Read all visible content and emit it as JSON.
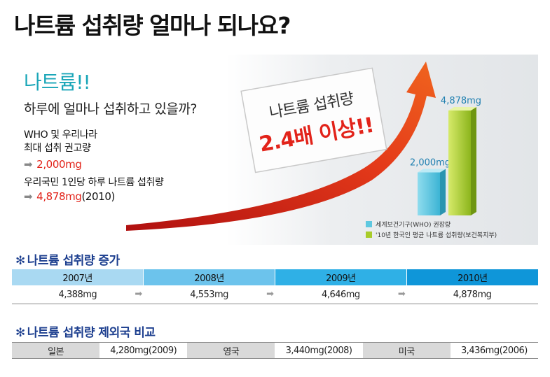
{
  "title": "나트륨 섭취량 얼마나 되나요?",
  "hero": {
    "heading": "나트륨!!",
    "subheading": "하루에 얼마나 섭취하고 있을까?",
    "who_line1": "WHO 및 우리나라",
    "who_line2": "최대 섭취 권고량",
    "who_value": "2,000mg",
    "korean_line": "우리국민 1인당 하루 나트륨 섭취량",
    "korean_value": "4,878mg",
    "korean_year": "(2010)",
    "arrow_glyph": "➡",
    "sign_line1": "나트륨 섭취량",
    "sign_line2": "2.4배 이상!!",
    "legend_who": "세계보건기구(WHO) 권장량",
    "legend_korea": "'10년 한국인 평균 나트륨 섭취량(보건복지부)"
  },
  "chart_data": {
    "type": "bar",
    "categories": [
      "세계보건기구(WHO) 권장량",
      "'10년 한국인 평균 나트륨 섭취량(보건복지부)"
    ],
    "values": [
      2000,
      4878
    ],
    "value_labels": [
      "2,000mg",
      "4,878mg"
    ],
    "colors": [
      "#5ec8e0",
      "#a8cc2a"
    ]
  },
  "increase": {
    "title": "나트륨 섭취량 증가",
    "asterisk": "✻",
    "arrow": "➡",
    "years": [
      "2007년",
      "2008년",
      "2009년",
      "2010년"
    ],
    "values": [
      "4,388mg",
      "4,553mg",
      "4,646mg",
      "4,878mg"
    ],
    "header_colors": [
      "#a9d9f2",
      "#6cc3ec",
      "#2fb0e6",
      "#0f96d9"
    ]
  },
  "comparison": {
    "title": "나트륨 섭취량 제외국 비교",
    "asterisk": "✻",
    "countries": [
      {
        "name": "일본",
        "value": "4,280mg(2009)"
      },
      {
        "name": "영국",
        "value": "3,440mg(2008)"
      },
      {
        "name": "미국",
        "value": "3,436mg(2006)"
      }
    ]
  }
}
